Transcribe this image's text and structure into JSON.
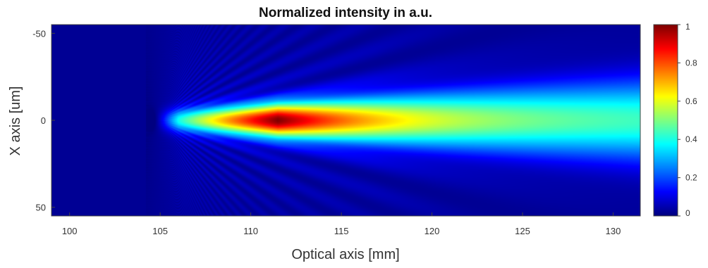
{
  "chart_data": {
    "type": "heatmap",
    "title": "Normalized intensity in a.u.",
    "xlabel": "Optical axis [mm]",
    "ylabel": "X axis [um]",
    "xlim": [
      99,
      131.5
    ],
    "ylim": [
      -55,
      55
    ],
    "y_reversed": true,
    "x_ticks": [
      100,
      105,
      110,
      115,
      120,
      125,
      130
    ],
    "y_ticks": [
      -50,
      0,
      50
    ],
    "colorbar": {
      "colormap": "jet",
      "range": [
        0,
        1
      ],
      "ticks": [
        0,
        0.2,
        0.4,
        0.6,
        0.8,
        1
      ],
      "tick_labels": [
        "0",
        "0.2",
        "0.4",
        "0.6",
        "0.8",
        "1"
      ]
    },
    "field": {
      "description_of_values": "normalized intensity vs optical axis position (mm) and transverse X (um)",
      "onset_mm": 104.8,
      "peak_position_mm": 111.5,
      "peak_intensity": 1.0,
      "intensity_at_120mm": 0.55,
      "intensity_at_130mm": 0.38,
      "beam_half_width_um_at_peak": 5,
      "beam_half_width_um_at_130mm": 16
    }
  }
}
